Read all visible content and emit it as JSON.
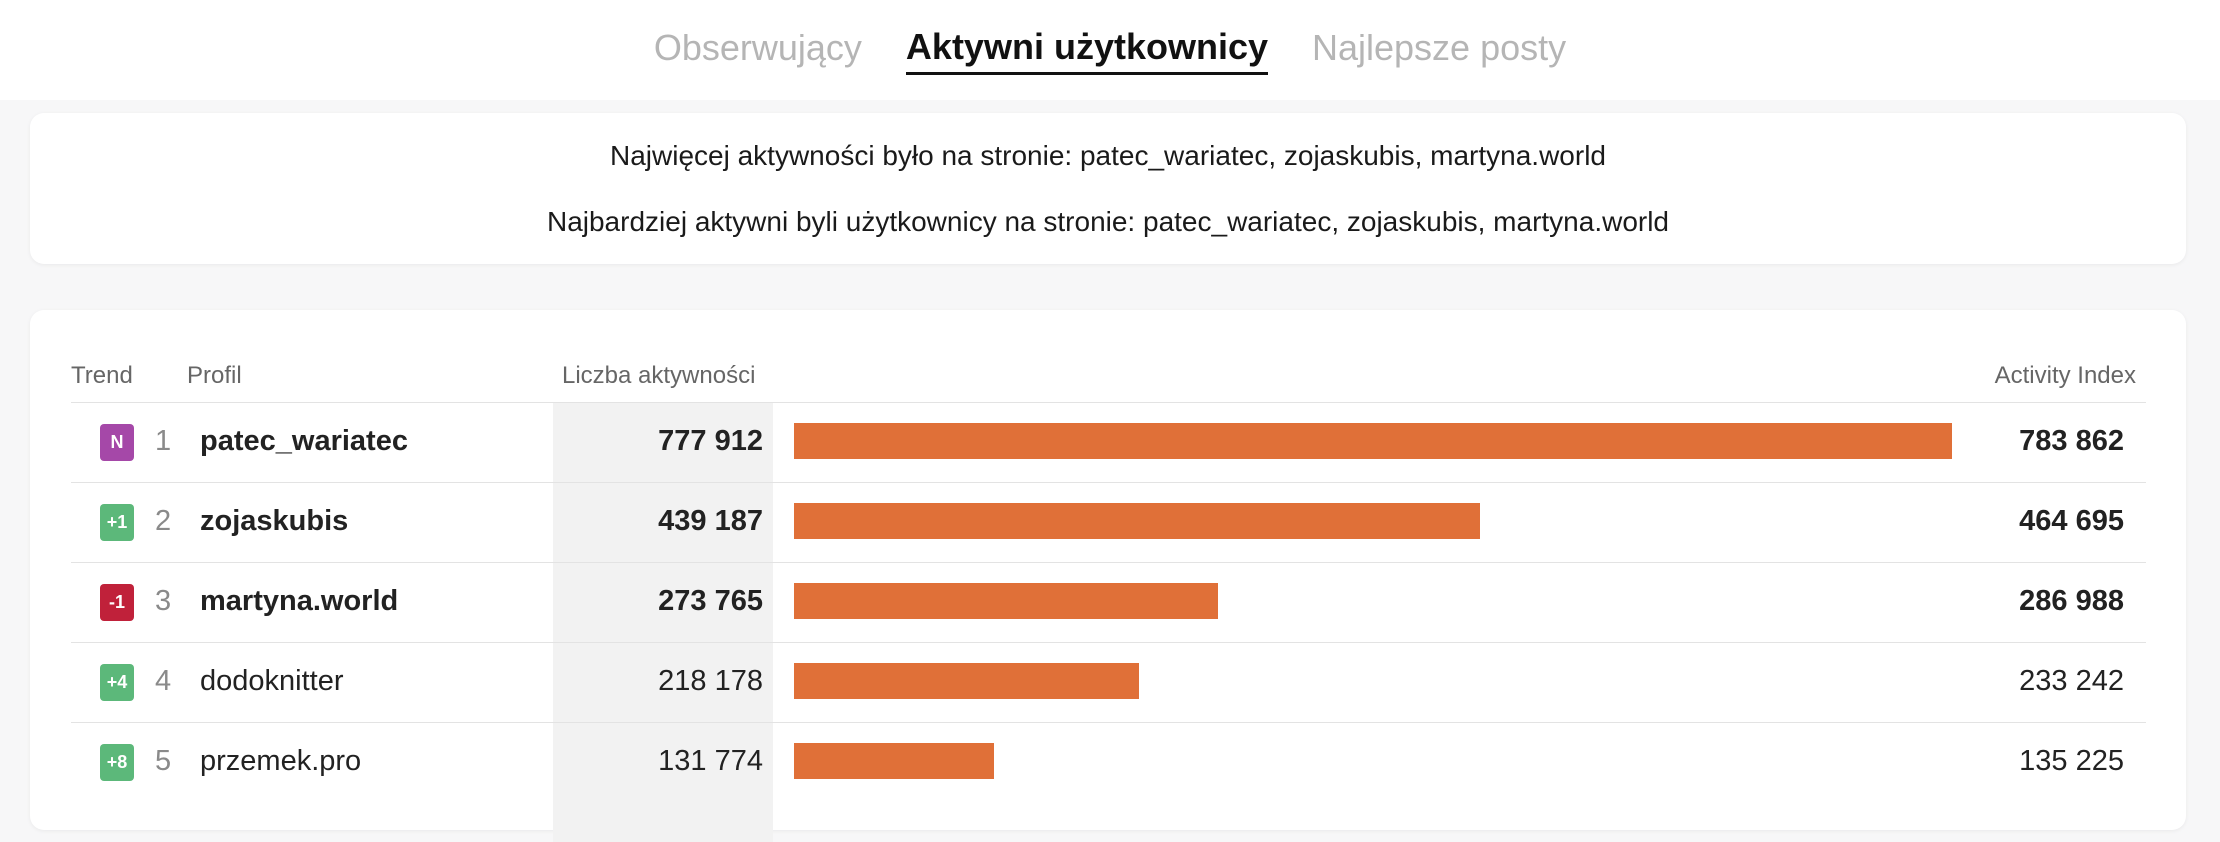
{
  "tabs": [
    {
      "label": "Obserwujący",
      "active": false
    },
    {
      "label": "Aktywni użytkownicy",
      "active": true
    },
    {
      "label": "Najlepsze posty",
      "active": false
    }
  ],
  "summary": {
    "line1": "Najwięcej aktywności było na stronie: patec_wariatec, zojaskubis, martyna.world",
    "line2": "Najbardziej aktywni byli użytkownicy na stronie: patec_wariatec, zojaskubis, martyna.world"
  },
  "table": {
    "headers": {
      "trend": "Trend",
      "profile": "Profil",
      "activity_count": "Liczba aktywności",
      "activity_index": "Activity Index"
    },
    "bar_color": "#e07038",
    "rows": [
      {
        "trend": "N",
        "trend_color": "#a548a8",
        "rank": "1",
        "profile": "patec_wariatec",
        "activity_count": "777 912",
        "activity_index": "783 862",
        "index_value": 783862,
        "bold": true
      },
      {
        "trend": "+1",
        "trend_color": "#5cb87a",
        "rank": "2",
        "profile": "zojaskubis",
        "activity_count": "439 187",
        "activity_index": "464 695",
        "index_value": 464695,
        "bold": true
      },
      {
        "trend": "-1",
        "trend_color": "#c0213a",
        "rank": "3",
        "profile": "martyna.world",
        "activity_count": "273 765",
        "activity_index": "286 988",
        "index_value": 286988,
        "bold": true
      },
      {
        "trend": "+4",
        "trend_color": "#5cb87a",
        "rank": "4",
        "profile": "dodoknitter",
        "activity_count": "218 178",
        "activity_index": "233 242",
        "index_value": 233242,
        "bold": false
      },
      {
        "trend": "+8",
        "trend_color": "#5cb87a",
        "rank": "5",
        "profile": "przemek.pro",
        "activity_count": "131 774",
        "activity_index": "135 225",
        "index_value": 135225,
        "bold": false
      }
    ]
  }
}
